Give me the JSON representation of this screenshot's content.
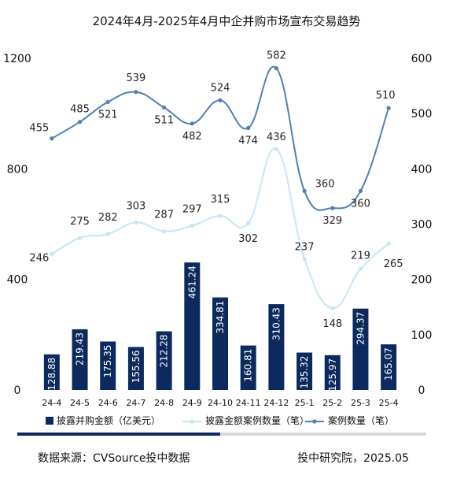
{
  "chart_data": {
    "type": "bar",
    "title": "2024年4月-2025年4月中企并购市场宣布交易趋势",
    "categories": [
      "24-4",
      "24-5",
      "24-6",
      "24-7",
      "24-8",
      "24-9",
      "24-10",
      "24-11",
      "24-12",
      "25-1",
      "25-2",
      "25-3",
      "25-4"
    ],
    "y_left": {
      "ticks": [
        "0",
        "400",
        "800",
        "1200"
      ],
      "range": [
        0,
        1200
      ]
    },
    "y_right": {
      "ticks": [
        "0",
        "100",
        "200",
        "300",
        "400",
        "500",
        "600"
      ],
      "range": [
        0,
        600
      ]
    },
    "series": [
      {
        "name": "披露并购金额（亿美元）",
        "type": "bar",
        "axis": "left",
        "color": "#0d2a5e",
        "values": [
          128.88,
          219.43,
          175.35,
          155.56,
          212.28,
          461.24,
          334.81,
          160.81,
          310.43,
          135.32,
          125.97,
          294.37,
          165.07
        ],
        "labels": [
          "128.88",
          "219.43",
          "175.35",
          "155.56",
          "212.28",
          "461.24",
          "334.81",
          "160.81",
          "310.43",
          "135.32",
          "125.97",
          "294.37",
          "165.07"
        ]
      },
      {
        "name": "披露金额案例数量（笔）",
        "type": "line",
        "axis": "right",
        "color": "#c6e6f3",
        "values": [
          246,
          275,
          282,
          303,
          287,
          297,
          315,
          302,
          436,
          237,
          148,
          219,
          265
        ],
        "labels": [
          "246",
          "275",
          "282",
          "303",
          "287",
          "297",
          "315",
          "302",
          "436",
          "237",
          "148",
          "219",
          "265"
        ]
      },
      {
        "name": "案例数量（笔）",
        "type": "line",
        "axis": "right",
        "color": "#4f7fb4",
        "values": [
          455,
          485,
          521,
          539,
          511,
          482,
          524,
          474,
          582,
          360,
          329,
          360,
          510
        ],
        "labels": [
          "455",
          "485",
          "521",
          "539",
          "511",
          "482",
          "524",
          "474",
          "582",
          "360",
          "329",
          "360",
          "510"
        ]
      }
    ],
    "grid": false,
    "legend_position": "bottom"
  },
  "footer": {
    "source": "数据来源：CVSource投中数据",
    "org": "投中研究院，2025.05"
  }
}
